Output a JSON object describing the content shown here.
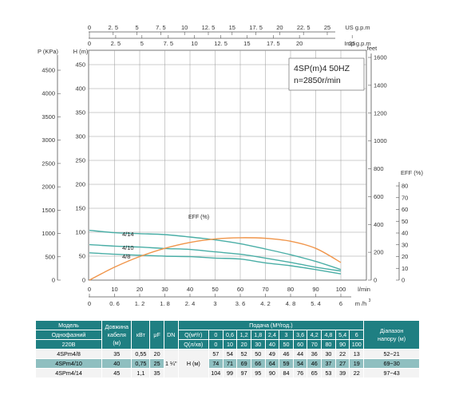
{
  "chart_data": {
    "type": "line",
    "title": "4SP(m)4  50HZ",
    "subtitle": "n=2850r/min",
    "left_axes": {
      "pressure": {
        "label": "P (KPa)",
        "ticks": [
          0,
          500,
          1000,
          1500,
          2000,
          2500,
          3000,
          3500,
          4000,
          4500
        ]
      },
      "head_m": {
        "label": "H (m)",
        "ticks": [
          0,
          50,
          100,
          150,
          200,
          250,
          300,
          350,
          400,
          450
        ],
        "ylim": [
          0,
          480
        ]
      }
    },
    "right_axes": {
      "head_feet": {
        "label": "feet",
        "ticks": [
          0,
          200,
          400,
          600,
          800,
          1000,
          1200,
          1400,
          1600
        ]
      },
      "efficiency": {
        "label": "EFF (%)",
        "ticks": [
          0,
          10,
          20,
          30,
          40,
          50,
          60,
          70,
          80
        ]
      }
    },
    "bottom_axes": {
      "lmin": {
        "label": "l/min",
        "ticks": [
          0,
          10,
          20,
          30,
          40,
          50,
          60,
          70,
          80,
          90,
          100
        ],
        "xlim": [
          0,
          105
        ]
      },
      "m3h": {
        "label": "m /h",
        "superscript": "3",
        "ticks": [
          "0",
          "0. 6",
          "1. 2",
          "1. 8",
          "2. 4",
          "3",
          "3. 6",
          "4. 2",
          "4. 8",
          "5. 4",
          "6"
        ]
      }
    },
    "top_axes": {
      "us_gpm": {
        "label": "US g.p.m",
        "ticks": [
          "0",
          "2. 5",
          "5",
          "7. 5",
          "10",
          "12. 5",
          "15",
          "17. 5",
          "20",
          "22. 5",
          "25"
        ]
      },
      "imp_gpm": {
        "label": "Imp g.p.m",
        "ticks": [
          "0",
          "2. 5",
          "5",
          "7. 5",
          "10",
          "12. 5",
          "15",
          "17. 5",
          "20",
          "25"
        ]
      }
    },
    "grid": true,
    "series": [
      {
        "name": "4/14",
        "color": "#4aaea6",
        "x": [
          0,
          10,
          20,
          30,
          40,
          50,
          60,
          70,
          80,
          90,
          100
        ],
        "y": [
          104,
          99,
          97,
          95,
          90,
          84,
          76,
          65,
          53,
          39,
          22
        ]
      },
      {
        "name": "4/10",
        "color": "#4aaea6",
        "x": [
          0,
          10,
          20,
          30,
          40,
          50,
          60,
          70,
          80,
          90,
          100
        ],
        "y": [
          74,
          71,
          69,
          66,
          64,
          59,
          54,
          46,
          37,
          27,
          19
        ]
      },
      {
        "name": "4/8",
        "color": "#4aaea6",
        "x": [
          0,
          10,
          20,
          30,
          40,
          50,
          60,
          70,
          80,
          90,
          100
        ],
        "y": [
          57,
          54,
          52,
          50,
          49,
          46,
          44,
          36,
          30,
          22,
          13
        ]
      },
      {
        "name": "EFF (%)",
        "color": "#f0954a",
        "axis": "efficiency",
        "x": [
          0,
          10,
          20,
          30,
          40,
          50,
          60,
          70,
          80,
          90,
          100
        ],
        "y": [
          0,
          11,
          20,
          27,
          32,
          35,
          36,
          35.5,
          33,
          27,
          15
        ]
      }
    ]
  },
  "table": {
    "header": {
      "model": "Модель",
      "phase": "Однофазний",
      "voltage": "220В",
      "cable_1": "Довжина",
      "cable_2": "кабеля",
      "cable_3": "(м)",
      "kw": "кВт",
      "uf": "μF",
      "dn": "DN",
      "flow_title": "Подача (М³/год.)",
      "q_m3h": "Q(м³/г)",
      "q_lmin": "Q(л/хв)",
      "range_1": "Діапазон",
      "range_2": "напору (м)",
      "h_label": "Н (м)",
      "dn_value": "1 ¼\""
    },
    "q_m3h_values": [
      "0",
      "0,6",
      "1,2",
      "1,8",
      "2,4",
      "3",
      "3,6",
      "4,2",
      "4,8",
      "5,4",
      "6"
    ],
    "q_lmin_values": [
      "0",
      "10",
      "20",
      "30",
      "40",
      "50",
      "60",
      "70",
      "80",
      "90",
      "100"
    ],
    "rows": [
      {
        "model": "4SPm4/8",
        "cable": "35",
        "kw": "0,55",
        "uf": "20",
        "h": [
          "57",
          "54",
          "52",
          "50",
          "49",
          "46",
          "44",
          "36",
          "30",
          "22",
          "13"
        ],
        "range": "52~21"
      },
      {
        "model": "4SPm4/10",
        "cable": "40",
        "kw": "0,75",
        "uf": "25",
        "h": [
          "74",
          "71",
          "69",
          "66",
          "64",
          "59",
          "54",
          "46",
          "37",
          "27",
          "19"
        ],
        "range": "69~30"
      },
      {
        "model": "4SPm4/14",
        "cable": "45",
        "kw": "1,1",
        "uf": "35",
        "h": [
          "104",
          "99",
          "97",
          "95",
          "90",
          "84",
          "76",
          "65",
          "53",
          "39",
          "22"
        ],
        "range": "97~43"
      }
    ]
  }
}
